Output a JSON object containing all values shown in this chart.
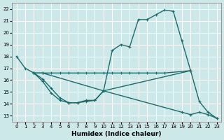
{
  "xlabel": "Humidex (Indice chaleur)",
  "bg_color": "#cce8e8",
  "grid_color": "#d4e8e8",
  "line_color": "#1a6b6b",
  "xlim": [
    -0.5,
    23.5
  ],
  "ylim": [
    12.5,
    22.5
  ],
  "xticks": [
    0,
    1,
    2,
    3,
    4,
    5,
    6,
    7,
    8,
    9,
    10,
    11,
    12,
    13,
    14,
    15,
    16,
    17,
    18,
    19,
    20,
    21,
    22,
    23
  ],
  "yticks": [
    13,
    14,
    15,
    16,
    17,
    18,
    19,
    20,
    21,
    22
  ],
  "line1_x": [
    0,
    1,
    2,
    3,
    10,
    11,
    12,
    13,
    14,
    15,
    16,
    17,
    18,
    19,
    20
  ],
  "line1_y": [
    18.0,
    17.0,
    16.6,
    16.6,
    15.1,
    18.5,
    19.0,
    18.8,
    21.1,
    21.1,
    21.5,
    21.9,
    21.8,
    19.3,
    16.8
  ],
  "line2_x": [
    2,
    3,
    4,
    5,
    6,
    7,
    8,
    9,
    10,
    11,
    12,
    13,
    14,
    15,
    16,
    17,
    20
  ],
  "line2_y": [
    16.6,
    16.6,
    16.6,
    16.6,
    16.6,
    16.6,
    16.6,
    16.6,
    16.6,
    16.6,
    16.6,
    16.6,
    16.6,
    16.6,
    16.6,
    16.6,
    16.8
  ],
  "line3_x": [
    2,
    3,
    4,
    5,
    6,
    7,
    8,
    9,
    10,
    20,
    21,
    22,
    23
  ],
  "line3_y": [
    16.6,
    15.9,
    14.9,
    14.3,
    14.1,
    14.1,
    14.3,
    14.3,
    15.1,
    16.8,
    14.2,
    13.3,
    12.8
  ],
  "line4_x": [
    2,
    3,
    4,
    5,
    6,
    7,
    8,
    9,
    10,
    19,
    20,
    21,
    22,
    23
  ],
  "line4_y": [
    16.6,
    16.1,
    15.3,
    14.5,
    14.1,
    14.1,
    14.2,
    14.3,
    15.1,
    13.3,
    13.1,
    13.3,
    13.1,
    12.8
  ],
  "marker_size": 2.5,
  "lw": 1.0
}
